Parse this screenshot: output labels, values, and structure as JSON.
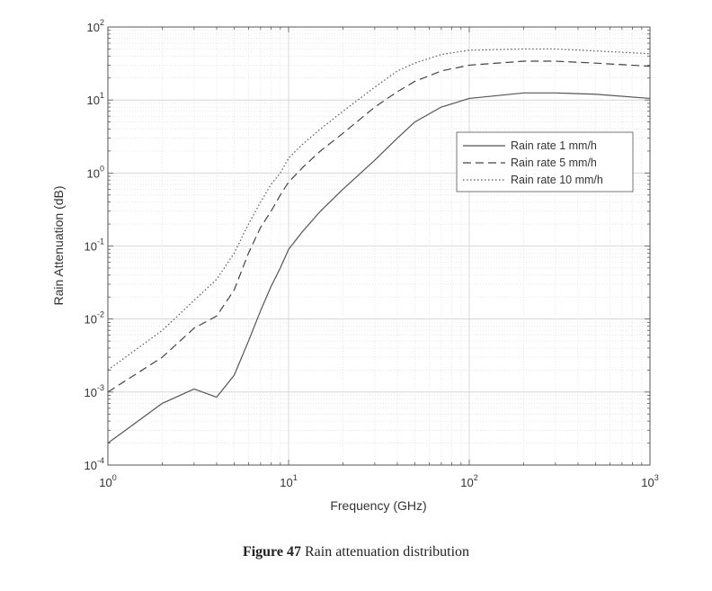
{
  "caption": {
    "label": "Figure 47",
    "text": "Rain attenuation distribution"
  },
  "chart_data": {
    "type": "line",
    "xlabel": "Frequency (GHz)",
    "ylabel": "Rain Attenuation (dB)",
    "xscale": "log",
    "yscale": "log",
    "xlim": [
      1,
      1000
    ],
    "ylim": [
      0.0001,
      100
    ],
    "x_ticks": [
      {
        "base": "10",
        "exp": "0",
        "value": 1
      },
      {
        "base": "10",
        "exp": "1",
        "value": 10
      },
      {
        "base": "10",
        "exp": "2",
        "value": 100
      },
      {
        "base": "10",
        "exp": "3",
        "value": 1000
      }
    ],
    "y_ticks": [
      {
        "base": "10",
        "exp": "-4",
        "value": 0.0001
      },
      {
        "base": "10",
        "exp": "-3",
        "value": 0.001
      },
      {
        "base": "10",
        "exp": "-2",
        "value": 0.01
      },
      {
        "base": "10",
        "exp": "-1",
        "value": 0.1
      },
      {
        "base": "10",
        "exp": "0",
        "value": 1
      },
      {
        "base": "10",
        "exp": "1",
        "value": 10
      },
      {
        "base": "10",
        "exp": "2",
        "value": 100
      }
    ],
    "grid": true,
    "minor_grid": true,
    "legend_position": "right",
    "series": [
      {
        "name": "Rain rate 1 mm/h",
        "style": "solid",
        "color": "#555555",
        "points": [
          [
            1,
            0.0002
          ],
          [
            2,
            0.0007
          ],
          [
            3,
            0.0011
          ],
          [
            4,
            0.00085
          ],
          [
            5,
            0.0017
          ],
          [
            6,
            0.005
          ],
          [
            7,
            0.013
          ],
          [
            8,
            0.028
          ],
          [
            9,
            0.05
          ],
          [
            10,
            0.09
          ],
          [
            12,
            0.16
          ],
          [
            15,
            0.3
          ],
          [
            20,
            0.6
          ],
          [
            30,
            1.5
          ],
          [
            40,
            3.0
          ],
          [
            50,
            5.0
          ],
          [
            70,
            8.0
          ],
          [
            100,
            10.5
          ],
          [
            200,
            12.5
          ],
          [
            300,
            12.5
          ],
          [
            500,
            12.0
          ],
          [
            1000,
            10.5
          ]
        ]
      },
      {
        "name": "Rain rate 5 mm/h",
        "style": "dashed",
        "color": "#444444",
        "points": [
          [
            1,
            0.001
          ],
          [
            2,
            0.003
          ],
          [
            3,
            0.0075
          ],
          [
            4,
            0.011
          ],
          [
            5,
            0.025
          ],
          [
            6,
            0.08
          ],
          [
            7,
            0.18
          ],
          [
            8,
            0.3
          ],
          [
            9,
            0.5
          ],
          [
            10,
            0.75
          ],
          [
            12,
            1.2
          ],
          [
            15,
            2.0
          ],
          [
            20,
            3.5
          ],
          [
            30,
            8.0
          ],
          [
            40,
            13.0
          ],
          [
            50,
            18.0
          ],
          [
            70,
            25.0
          ],
          [
            100,
            30.0
          ],
          [
            200,
            34.0
          ],
          [
            300,
            34.0
          ],
          [
            500,
            32.0
          ],
          [
            1000,
            29.0
          ]
        ]
      },
      {
        "name": "Rain rate 10 mm/h",
        "style": "dotted",
        "color": "#555555",
        "points": [
          [
            1,
            0.002
          ],
          [
            2,
            0.007
          ],
          [
            3,
            0.018
          ],
          [
            4,
            0.035
          ],
          [
            5,
            0.08
          ],
          [
            6,
            0.2
          ],
          [
            7,
            0.4
          ],
          [
            8,
            0.7
          ],
          [
            9,
            1.0
          ],
          [
            10,
            1.6
          ],
          [
            12,
            2.5
          ],
          [
            15,
            4.0
          ],
          [
            20,
            7.0
          ],
          [
            30,
            15.0
          ],
          [
            40,
            25.0
          ],
          [
            50,
            32.0
          ],
          [
            70,
            42.0
          ],
          [
            100,
            48.0
          ],
          [
            200,
            50.0
          ],
          [
            300,
            50.0
          ],
          [
            500,
            47.0
          ],
          [
            1000,
            43.0
          ]
        ]
      }
    ]
  }
}
